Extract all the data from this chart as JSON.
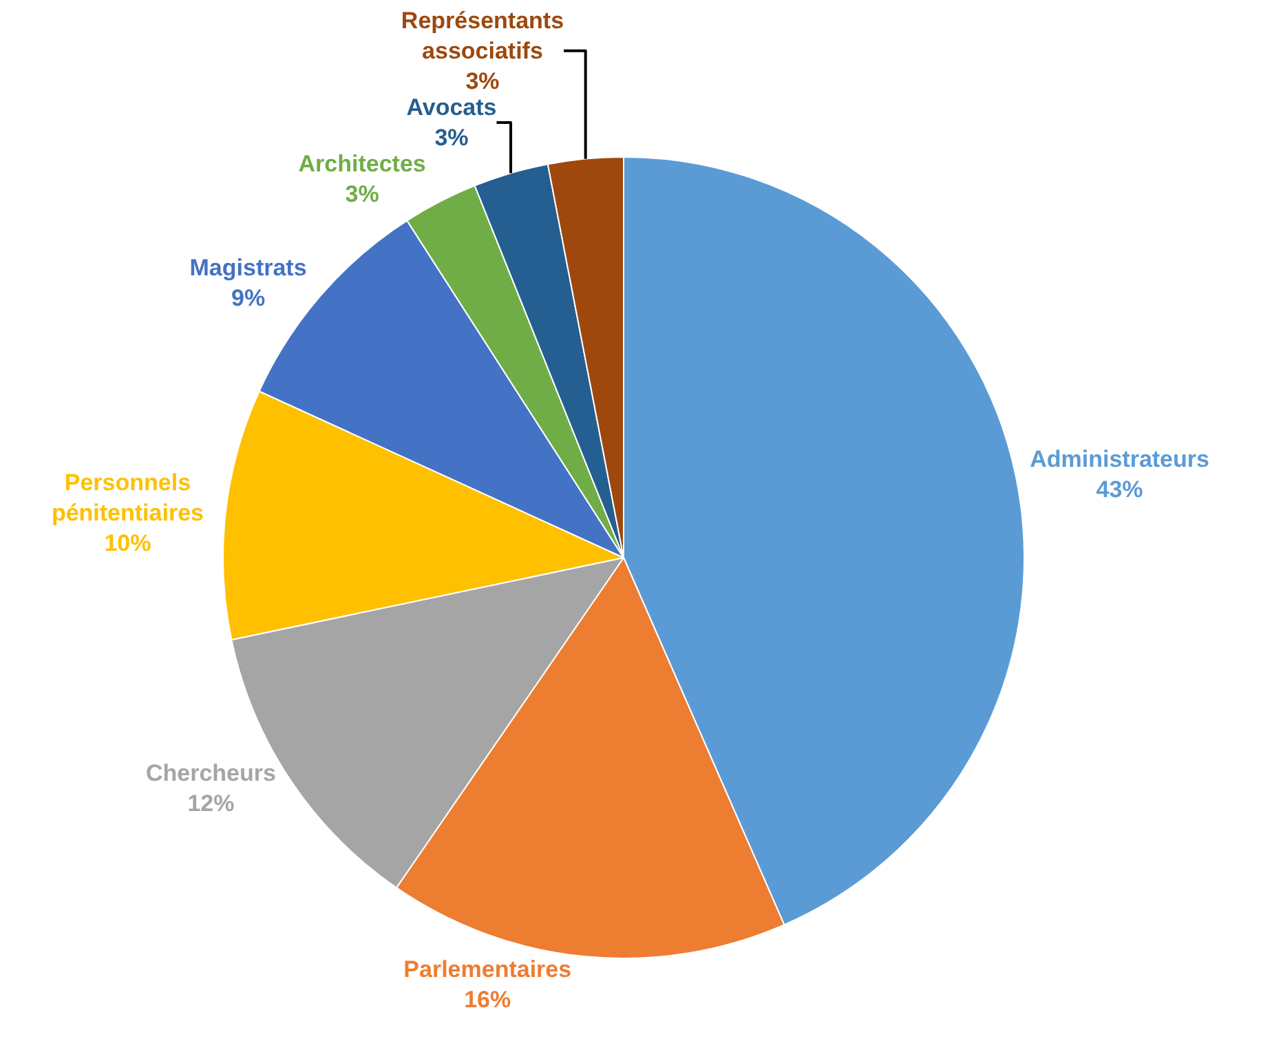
{
  "chart_data": {
    "type": "pie",
    "categories": [
      "Administrateurs",
      "Parlementaires",
      "Chercheurs",
      "Personnels pénitentiaires",
      "Magistrats",
      "Architectes",
      "Avocats",
      "Représentants associatifs"
    ],
    "values": [
      43,
      16,
      12,
      10,
      9,
      3,
      3,
      3
    ],
    "colors": [
      "#5b9bd5",
      "#ed7d31",
      "#a5a5a5",
      "#ffc000",
      "#4472c4",
      "#70ad47",
      "#255e91",
      "#9e480e"
    ],
    "value_labels": [
      "43%",
      "16%",
      "12%",
      "10%",
      "9%",
      "3%",
      "3%",
      "3%"
    ],
    "legend": false
  }
}
